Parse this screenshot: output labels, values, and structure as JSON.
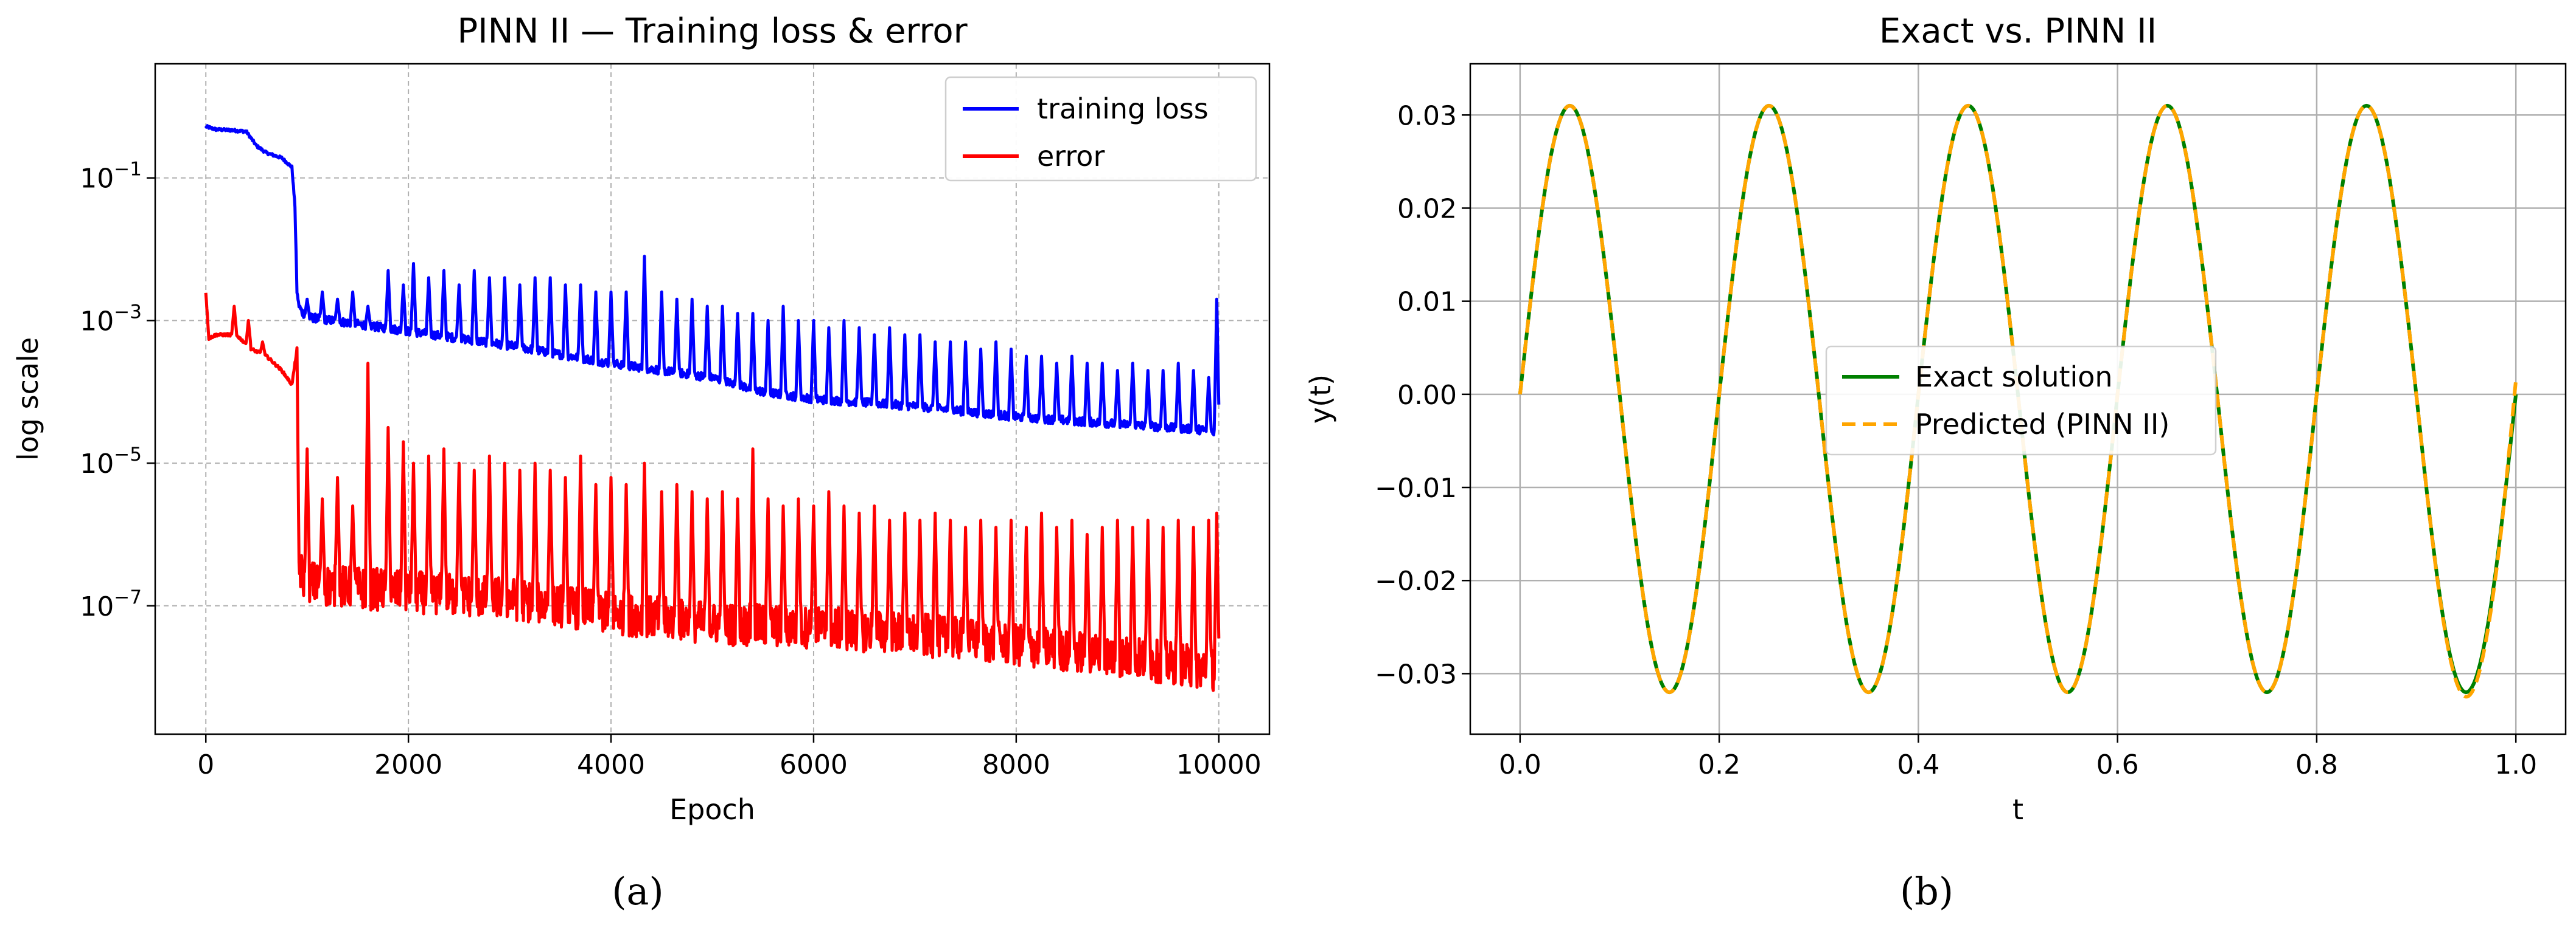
{
  "chart_data": [
    {
      "type": "line",
      "title": "PINN II — Training loss & error",
      "xlabel": "Epoch",
      "ylabel": "log scale",
      "xlim": [
        -500,
        10500
      ],
      "ylim_log10": [
        -8.8,
        0.6
      ],
      "yscale": "log",
      "grid": true,
      "legend_position": "upper right",
      "x_ticks": [
        0,
        2000,
        4000,
        6000,
        8000,
        10000
      ],
      "y_ticks": [
        {
          "value_log10": -1,
          "label_base": "10",
          "label_exp": "−1"
        },
        {
          "value_log10": -3,
          "label_base": "10",
          "label_exp": "−3"
        },
        {
          "value_log10": -5,
          "label_base": "10",
          "label_exp": "−5"
        },
        {
          "value_log10": -7,
          "label_base": "10",
          "label_exp": "−7"
        }
      ],
      "series": [
        {
          "name": "training loss",
          "color": "#0000ff",
          "x": [
            0,
            100,
            250,
            400,
            500,
            600,
            750,
            850,
            880,
            900,
            920,
            950,
            1000,
            1500,
            2000,
            3000,
            4000,
            5000,
            5500,
            6000,
            7000,
            8000,
            9000,
            10000
          ],
          "y_log10": [
            -0.28,
            -0.32,
            -0.33,
            -0.35,
            -0.55,
            -0.65,
            -0.72,
            -0.85,
            -1.4,
            -2.6,
            -2.8,
            -2.88,
            -2.95,
            -3.05,
            -3.15,
            -3.35,
            -3.6,
            -3.8,
            -4.0,
            -4.1,
            -4.2,
            -4.35,
            -4.45,
            -4.55
          ],
          "spike_x": [
            1000,
            1150,
            1300,
            1450,
            1600,
            1800,
            1950,
            2050,
            2200,
            2350,
            2500,
            2650,
            2800,
            2950,
            3100,
            3250,
            3400,
            3550,
            3700,
            3850,
            4000,
            4150,
            4330,
            4500,
            4650,
            4800,
            4950,
            5100,
            5250,
            5400,
            5550,
            5700,
            5850,
            6000,
            6150,
            6300,
            6450,
            6600,
            6750,
            6900,
            7050,
            7200,
            7350,
            7500,
            7650,
            7800,
            7950,
            8100,
            8250,
            8400,
            8550,
            8700,
            8850,
            9000,
            9150,
            9300,
            9450,
            9600,
            9750,
            9900,
            9980
          ],
          "spike_y_log10": [
            -2.7,
            -2.6,
            -2.7,
            -2.6,
            -2.8,
            -2.3,
            -2.5,
            -2.2,
            -2.4,
            -2.3,
            -2.5,
            -2.3,
            -2.4,
            -2.4,
            -2.5,
            -2.4,
            -2.4,
            -2.5,
            -2.5,
            -2.6,
            -2.6,
            -2.6,
            -2.1,
            -2.6,
            -2.7,
            -2.7,
            -2.8,
            -2.8,
            -2.9,
            -2.9,
            -3.0,
            -2.8,
            -3.0,
            -3.0,
            -3.1,
            -3.0,
            -3.1,
            -3.2,
            -3.1,
            -3.2,
            -3.2,
            -3.3,
            -3.3,
            -3.3,
            -3.4,
            -3.3,
            -3.4,
            -3.5,
            -3.5,
            -3.6,
            -3.5,
            -3.6,
            -3.6,
            -3.7,
            -3.6,
            -3.7,
            -3.7,
            -3.6,
            -3.7,
            -3.8,
            -2.7
          ]
        },
        {
          "name": "error",
          "color": "#ff0000",
          "x": [
            0,
            30,
            100,
            300,
            450,
            600,
            750,
            850,
            900,
            920,
            950,
            1100,
            1500,
            2000,
            3000,
            4000,
            5000,
            6000,
            7000,
            8000,
            9000,
            10000
          ],
          "y_log10": [
            -2.6,
            -3.25,
            -3.2,
            -3.2,
            -3.4,
            -3.5,
            -3.7,
            -3.9,
            -3.4,
            -6.4,
            -6.6,
            -6.7,
            -6.75,
            -6.8,
            -6.9,
            -7.1,
            -7.25,
            -7.3,
            -7.4,
            -7.55,
            -7.7,
            -7.9
          ],
          "spike_x": [
            280,
            420,
            560,
            1000,
            1150,
            1300,
            1450,
            1600,
            1800,
            1950,
            2050,
            2200,
            2350,
            2500,
            2650,
            2800,
            2950,
            3100,
            3250,
            3400,
            3550,
            3700,
            3850,
            4000,
            4150,
            4330,
            4500,
            4650,
            4800,
            4950,
            5100,
            5250,
            5400,
            5550,
            5700,
            5850,
            6000,
            6150,
            6300,
            6450,
            6600,
            6750,
            6900,
            7050,
            7200,
            7350,
            7500,
            7650,
            7800,
            7950,
            8100,
            8250,
            8400,
            8550,
            8700,
            8850,
            9000,
            9150,
            9300,
            9450,
            9600,
            9750,
            9900,
            9980
          ],
          "spike_y_log10": [
            -2.8,
            -3.0,
            -3.3,
            -4.8,
            -5.5,
            -5.2,
            -5.6,
            -3.6,
            -4.5,
            -4.7,
            -5.0,
            -4.9,
            -4.8,
            -5.0,
            -5.1,
            -4.9,
            -5.0,
            -5.1,
            -5.0,
            -5.1,
            -5.2,
            -4.9,
            -5.3,
            -5.2,
            -5.3,
            -5.0,
            -5.4,
            -5.3,
            -5.4,
            -5.5,
            -5.4,
            -5.5,
            -4.8,
            -5.5,
            -5.6,
            -5.5,
            -5.6,
            -5.4,
            -5.6,
            -5.7,
            -5.6,
            -5.8,
            -5.7,
            -5.8,
            -5.7,
            -5.8,
            -5.9,
            -5.8,
            -5.9,
            -5.8,
            -5.9,
            -5.7,
            -5.9,
            -5.8,
            -6.0,
            -5.9,
            -5.8,
            -5.9,
            -5.8,
            -5.9,
            -5.8,
            -5.9,
            -5.8,
            -5.7
          ]
        }
      ]
    },
    {
      "type": "line",
      "title": "Exact vs. PINN II",
      "xlabel": "t",
      "ylabel": "y(t)",
      "xlim": [
        -0.05,
        1.05
      ],
      "ylim": [
        -0.0365,
        0.0355
      ],
      "grid": true,
      "legend_position": "center",
      "x_ticks": [
        "0.0",
        "0.2",
        "0.4",
        "0.6",
        "0.8",
        "1.0"
      ],
      "y_ticks": [
        "0.03",
        "0.02",
        "0.01",
        "0.00",
        "−0.01",
        "−0.02",
        "−0.03"
      ],
      "series": [
        {
          "name": "Exact solution",
          "color": "#008000",
          "style": "solid",
          "x": [
            0,
            0.05,
            0.15,
            0.25,
            0.35,
            0.45,
            0.55,
            0.65,
            0.75,
            0.85,
            0.95,
            1.0
          ],
          "y": [
            0,
            0.031,
            -0.032,
            0.031,
            -0.032,
            0.031,
            -0.032,
            0.031,
            -0.032,
            0.031,
            -0.032,
            0
          ]
        },
        {
          "name": "Predicted (PINN II)",
          "color": "#ffa500",
          "style": "dashed",
          "x": [
            0,
            0.05,
            0.15,
            0.25,
            0.35,
            0.45,
            0.55,
            0.65,
            0.75,
            0.85,
            0.95,
            1.0
          ],
          "y": [
            0,
            0.031,
            -0.032,
            0.031,
            -0.032,
            0.031,
            -0.032,
            0.031,
            -0.032,
            0.031,
            -0.033,
            0.0015
          ]
        }
      ]
    }
  ],
  "panel_labels": [
    "(a)",
    "(b)"
  ]
}
